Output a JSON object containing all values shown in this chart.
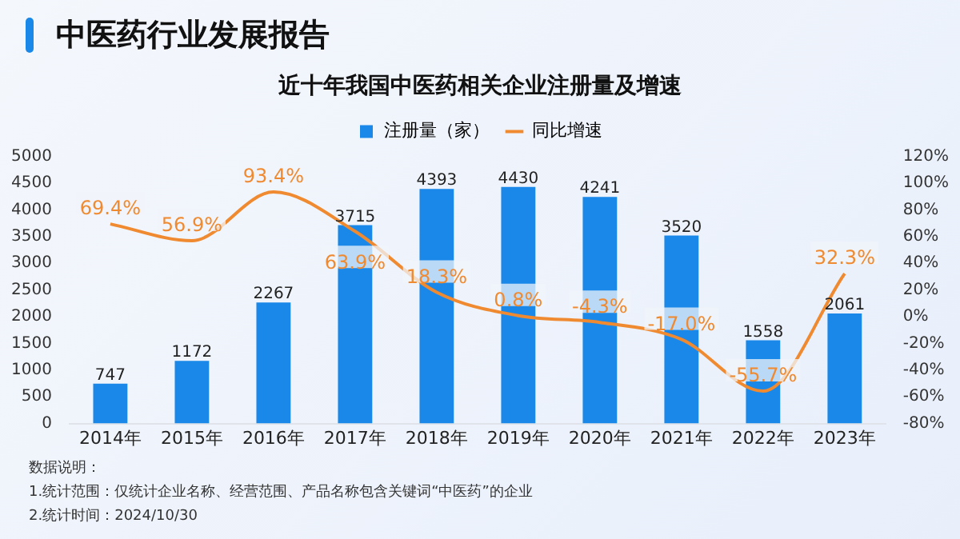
{
  "chart_data": {
    "type": "bar",
    "title": "中医药行业发展报告",
    "subtitle": "近十年我国中医药相关企业注册量及增速",
    "categories": [
      "2014年",
      "2015年",
      "2016年",
      "2017年",
      "2018年",
      "2019年",
      "2020年",
      "2021年",
      "2022年",
      "2023年"
    ],
    "series": [
      {
        "name": "注册量（家）",
        "color": "#1a88e8",
        "values": [
          747,
          1172,
          2267,
          3715,
          4393,
          4430,
          4241,
          3520,
          1558,
          2061
        ]
      },
      {
        "name": "同比增速",
        "type": "line",
        "axis": "y2",
        "color": "#f08a30",
        "values": [
          69.4,
          56.9,
          93.4,
          63.9,
          18.3,
          0.8,
          -4.3,
          -17.0,
          -55.7,
          32.3
        ],
        "value_labels": [
          "69.4%",
          "56.9%",
          "93.4%",
          "63.9%",
          "18.3%",
          "0.8%",
          "-4.3%",
          "-17.0%",
          "-55.7%",
          "32.3%"
        ]
      }
    ],
    "ylim": [
      0,
      5000
    ],
    "yticks": [
      0,
      500,
      1000,
      1500,
      2000,
      2500,
      3000,
      3500,
      4000,
      4500,
      5000
    ],
    "y2lim": [
      -80,
      120
    ],
    "y2ticks": [
      {
        "value": -80,
        "label": "-80%"
      },
      {
        "value": -60,
        "label": "-60%"
      },
      {
        "value": -40,
        "label": "-40%"
      },
      {
        "value": -20,
        "label": "-20%"
      },
      {
        "value": 0,
        "label": "0%"
      },
      {
        "value": 20,
        "label": "20%"
      },
      {
        "value": 40,
        "label": "40%"
      },
      {
        "value": 60,
        "label": "60%"
      },
      {
        "value": 80,
        "label": "80%"
      },
      {
        "value": 100,
        "label": "100%"
      },
      {
        "value": 120,
        "label": "120%"
      }
    ],
    "data_labels": true,
    "grid": false,
    "legend": "top",
    "marker": "none",
    "annotations": [
      "数据说明：",
      "1.统计范围：仅统计企业名称、经营范围、产品名称包含关键词“中医药”的企业",
      "2.统计时间：2024/10/30"
    ]
  }
}
